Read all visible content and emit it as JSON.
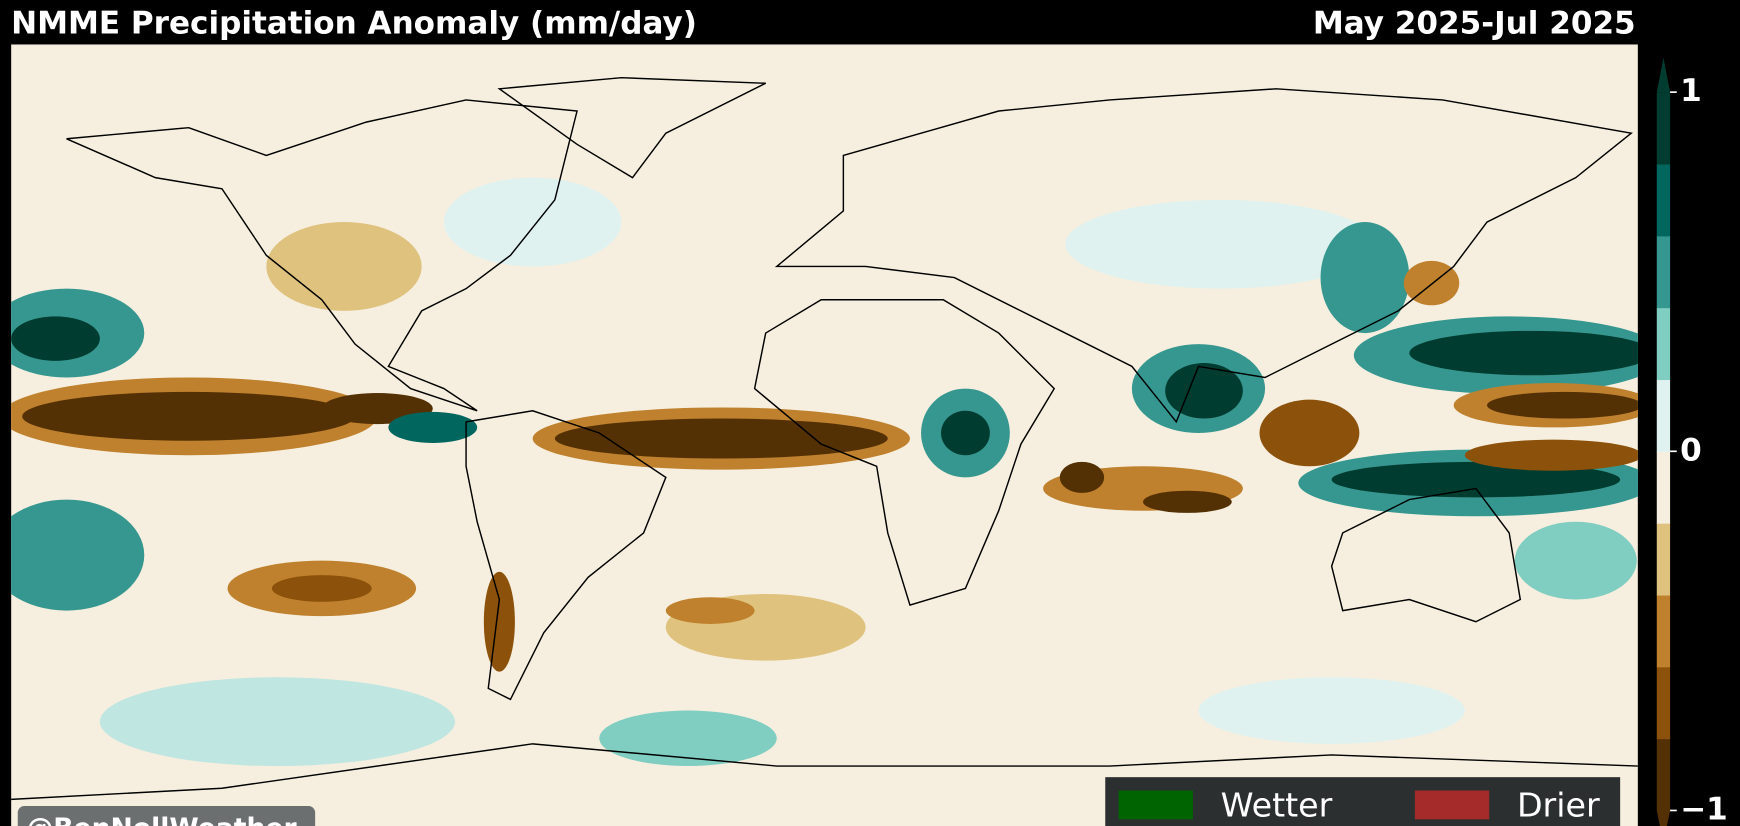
{
  "title": "NMME Precipitation Anomaly (mm/day)",
  "period": "May 2025-Jul 2025",
  "colorbar": {
    "lim": [
      -1,
      1
    ],
    "ticks": [
      1,
      0,
      {
        "value": -1,
        "label": "−1"
      }
    ],
    "colors": [
      "#543005",
      "#8c510a",
      "#bf812d",
      "#dfc27d",
      "#f6efdf",
      "#dff2f0",
      "#80cdc1",
      "#35978f",
      "#01665e",
      "#003c30"
    ]
  },
  "legend": [
    {
      "label": "Wetter",
      "color": "#006400"
    },
    {
      "label": "Drier",
      "color": "#a52a2a"
    }
  ],
  "credit": "@BenNollWeather"
}
